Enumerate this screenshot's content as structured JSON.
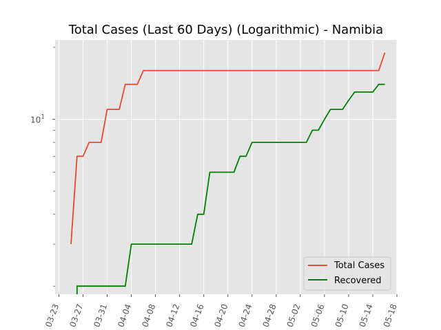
{
  "chart_data": {
    "type": "line",
    "title": "Total Cases (Last 60 Days) (Logarithmic) - Namibia",
    "xlabel": "",
    "ylabel": "",
    "yscale": "log",
    "grid": true,
    "legend_position": "bottom-right",
    "x_ticks": [
      "2020-03-23",
      "2020-03-27",
      "2020-03-31",
      "2020-04-04",
      "2020-04-08",
      "2020-04-12",
      "2020-04-16",
      "2020-04-20",
      "2020-04-24",
      "2020-04-28",
      "2020-05-02",
      "2020-05-06",
      "2020-05-10",
      "2020-05-14",
      "2020-05-18"
    ],
    "x_tick_labels": [
      "03-23",
      "03-27",
      "03-31",
      "04-04",
      "04-08",
      "04-12",
      "04-16",
      "04-20",
      "04-24",
      "04-28",
      "05-02",
      "05-06",
      "05-10",
      "05-14",
      "05-18"
    ],
    "y_tick_labels": [
      {
        "value": 10,
        "base": "10",
        "exp": "1"
      }
    ],
    "series": [
      {
        "name": "Total Cases",
        "color": "#e24a33",
        "points": [
          [
            "2020-03-25",
            3
          ],
          [
            "2020-03-26",
            7
          ],
          [
            "2020-03-27",
            7
          ],
          [
            "2020-03-28",
            8
          ],
          [
            "2020-03-29",
            8
          ],
          [
            "2020-03-30",
            8
          ],
          [
            "2020-03-31",
            11
          ],
          [
            "2020-04-01",
            11
          ],
          [
            "2020-04-02",
            11
          ],
          [
            "2020-04-03",
            14
          ],
          [
            "2020-04-04",
            14
          ],
          [
            "2020-04-05",
            14
          ],
          [
            "2020-04-06",
            16
          ],
          [
            "2020-04-20",
            16
          ],
          [
            "2020-05-05",
            16
          ],
          [
            "2020-05-14",
            16
          ],
          [
            "2020-05-15",
            16
          ],
          [
            "2020-05-16",
            19
          ]
        ]
      },
      {
        "name": "Recovered",
        "color": "#008000",
        "points": [
          [
            "2020-03-26",
            1.8
          ],
          [
            "2020-03-26",
            2
          ],
          [
            "2020-04-03",
            2
          ],
          [
            "2020-04-04",
            3
          ],
          [
            "2020-04-05",
            3
          ],
          [
            "2020-04-14",
            3
          ],
          [
            "2020-04-15",
            4
          ],
          [
            "2020-04-16",
            4
          ],
          [
            "2020-04-17",
            6
          ],
          [
            "2020-04-21",
            6
          ],
          [
            "2020-04-22",
            7
          ],
          [
            "2020-04-23",
            7
          ],
          [
            "2020-04-24",
            8
          ],
          [
            "2020-05-03",
            8
          ],
          [
            "2020-05-04",
            9
          ],
          [
            "2020-05-05",
            9
          ],
          [
            "2020-05-06",
            10
          ],
          [
            "2020-05-07",
            11
          ],
          [
            "2020-05-09",
            11
          ],
          [
            "2020-05-10",
            12
          ],
          [
            "2020-05-11",
            13
          ],
          [
            "2020-05-14",
            13
          ],
          [
            "2020-05-15",
            14
          ],
          [
            "2020-05-16",
            14
          ]
        ]
      }
    ]
  }
}
